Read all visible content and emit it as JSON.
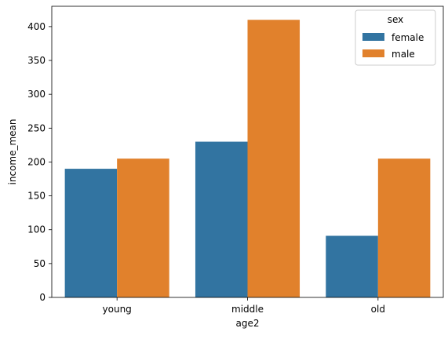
{
  "chart_data": {
    "type": "bar",
    "categories": [
      "young",
      "middle",
      "old"
    ],
    "series": [
      {
        "name": "female",
        "values": [
          190,
          230,
          91
        ],
        "color": "#3274a1"
      },
      {
        "name": "male",
        "values": [
          205,
          410,
          205
        ],
        "color": "#e1812c"
      }
    ],
    "xlabel": "age2",
    "ylabel": "income_mean",
    "ylim": [
      0,
      430
    ],
    "yticks": [
      0,
      50,
      100,
      150,
      200,
      250,
      300,
      350,
      400
    ],
    "grid": false,
    "legend": {
      "title": "sex",
      "placement": "top-right"
    }
  }
}
